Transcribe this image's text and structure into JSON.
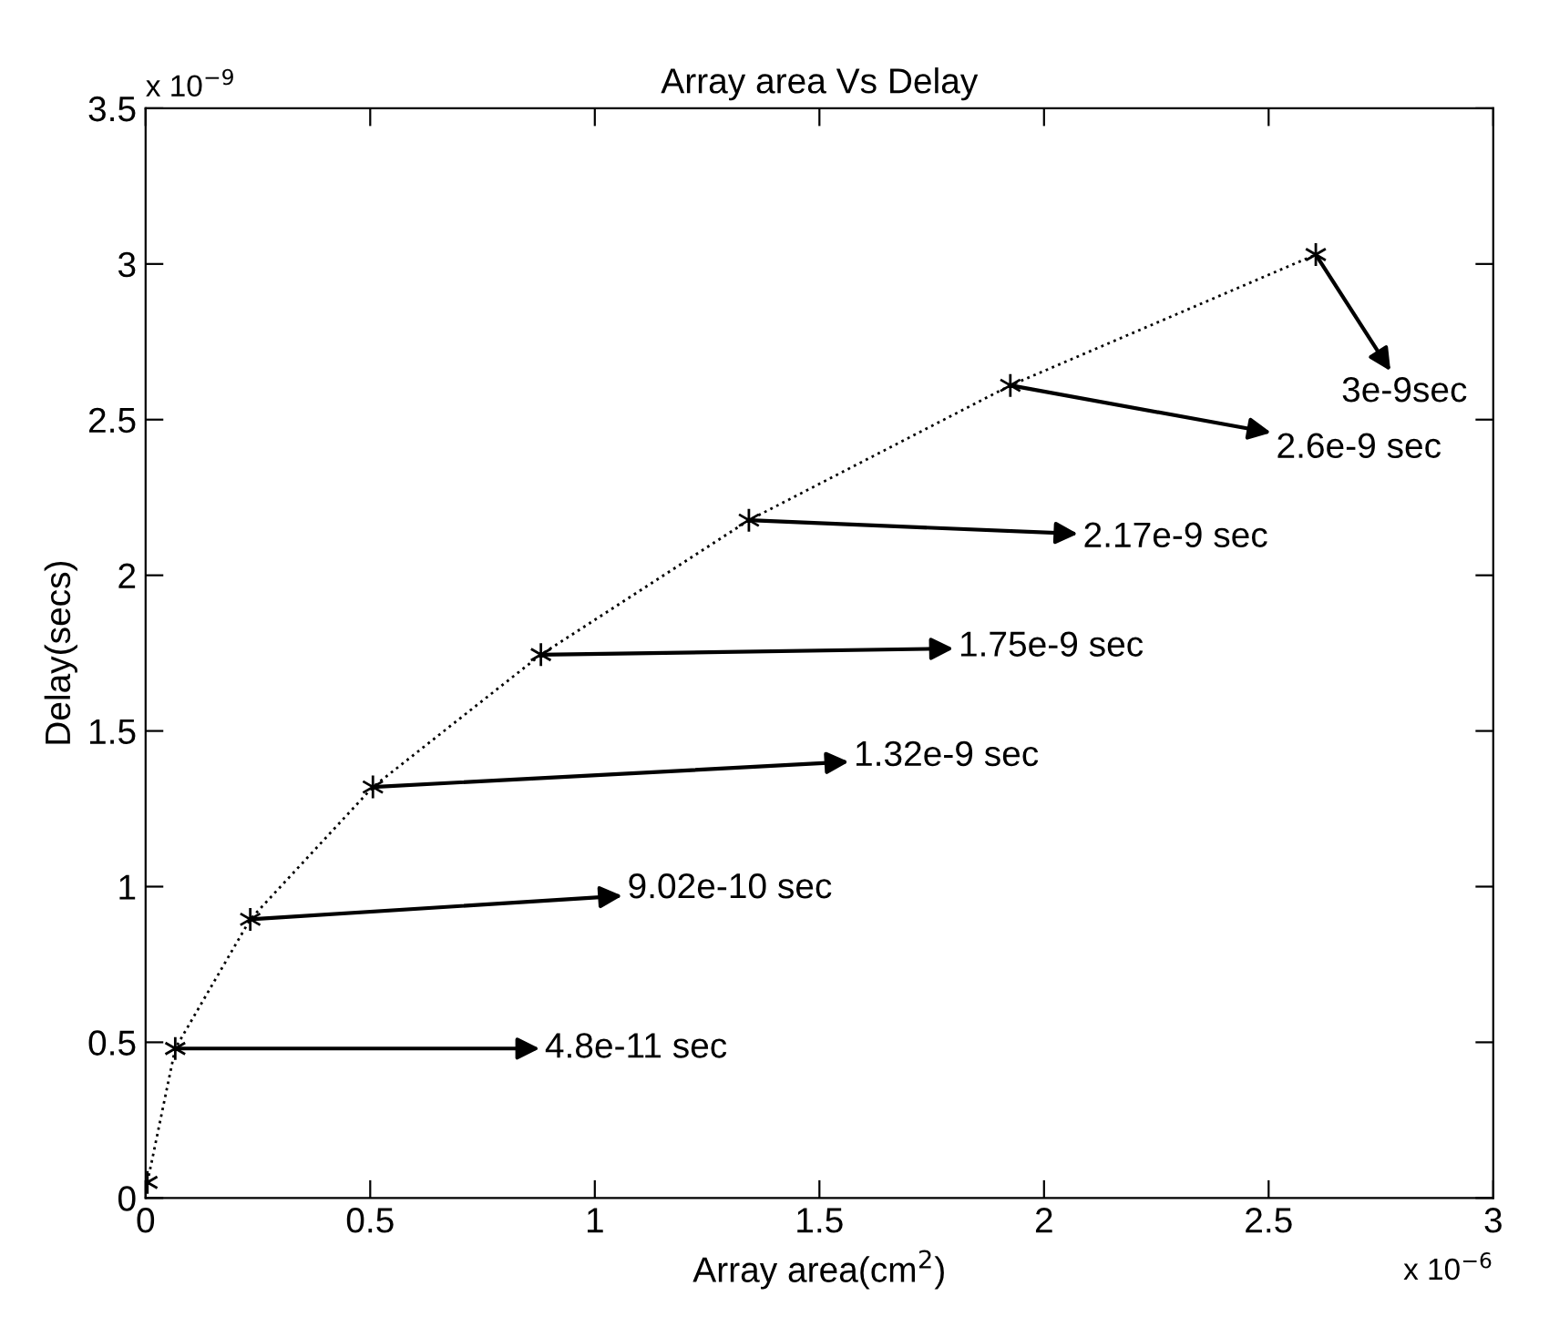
{
  "chart_data": {
    "type": "line",
    "title": "Array area Vs Delay",
    "xlabel": "Array area(cm$^{2}$)",
    "ylabel": "Delay(secs)",
    "x": [
      0.004,
      0.066,
      0.233,
      0.506,
      0.88,
      1.343,
      1.925,
      2.605
    ],
    "series": [
      {
        "color": "#000000",
        "values": [
          0.05,
          0.48,
          0.895,
          1.32,
          1.745,
          2.177,
          2.61,
          3.03
        ]
      }
    ],
    "marker": "cross",
    "line_style": "dotted",
    "grid": false,
    "legend": false,
    "xlim": [
      0,
      3
    ],
    "ylim": [
      0,
      3.5
    ],
    "xticks": [
      0,
      0.5,
      1,
      1.5,
      2,
      2.5,
      3
    ],
    "yticks": [
      0,
      0.5,
      1,
      1.5,
      2,
      2.5,
      3,
      3.5
    ],
    "annotations": [
      "x 10$^{−9}$",
      "x 10$^{−6}$",
      {
        "text": "4.8e-11 sec",
        "x": 0.066,
        "y": 0.48
      },
      {
        "text": "9.02e-10 sec",
        "x": 0.233,
        "y": 0.895
      },
      {
        "text": "1.32e-9 sec",
        "x": 0.506,
        "y": 1.32
      },
      {
        "text": "1.75e-9 sec",
        "x": 0.88,
        "y": 1.745
      },
      {
        "text": "2.17e-9 sec",
        "x": 1.343,
        "y": 2.177
      },
      {
        "text": "2.6e-9 sec",
        "x": 1.925,
        "y": 2.61
      },
      {
        "text": "3e-9sec",
        "x": 2.605,
        "y": 3.03
      }
    ]
  }
}
